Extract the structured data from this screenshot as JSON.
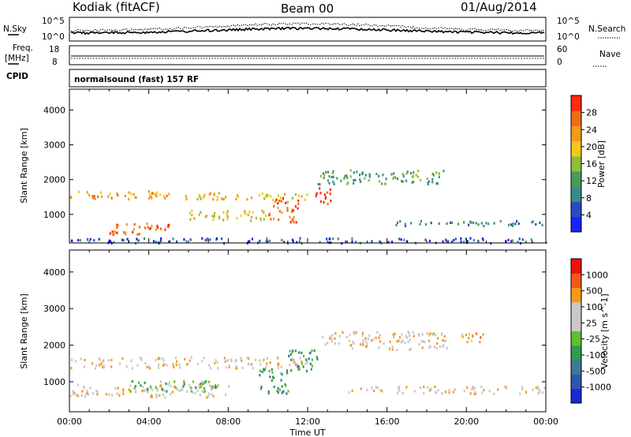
{
  "header": {
    "station": "Kodiak (fitACF)",
    "beam": "Beam 00",
    "date": "01/Aug/2014"
  },
  "strips": {
    "nsky_label": "N.Sky",
    "nsearch_label": "N.Search",
    "freq_label_1": "Freq.",
    "freq_label_2": "[MHz]",
    "nave_label": "Nave",
    "cpid_label": "CPID",
    "cpid_text": "normalsound (fast) 157 RF",
    "noise_ticks_left": [
      "10^5",
      "10^0"
    ],
    "noise_ticks_right": [
      "10^5",
      "10^0"
    ],
    "freq_ticks": [
      "18",
      "8"
    ],
    "nave_ticks": [
      "60",
      "0"
    ]
  },
  "colors": {
    "power": [
      "#1a22ff",
      "#2b4cc0",
      "#3a8a8a",
      "#4c9a5a",
      "#8dbf3a",
      "#f2c81c",
      "#f39a1a",
      "#f06a18",
      "#ff2a10"
    ],
    "velocity": [
      "#ee1111",
      "#f25a14",
      "#f59a1c",
      "#c8c8c8",
      "#c8c8c8",
      "#60c030",
      "#2f9a50",
      "#3c7a9a",
      "#2e56b0",
      "#1a2ad0"
    ]
  },
  "chart_data": [
    {
      "type": "heatmap",
      "title": "Power",
      "xlabel": "Time UT",
      "ylabel": "Slant Range [km]",
      "colorbar_label": "Power [dB]",
      "colorbar_ticks": [
        "4",
        "8",
        "12",
        "16",
        "20",
        "24",
        "28"
      ],
      "x_ticks": [
        "00:00",
        "04:00",
        "08:00",
        "12:00",
        "16:00",
        "20:00",
        "00:00"
      ],
      "y_ticks": [
        "1000",
        "2000",
        "3000",
        "4000"
      ],
      "xlim": [
        0,
        24
      ],
      "ylim": [
        180,
        4600
      ],
      "bands": [
        {
          "t": [
            0,
            5
          ],
          "range": [
            1450,
            1700
          ],
          "level": 6
        },
        {
          "t": [
            5,
            12
          ],
          "range": [
            1450,
            1650
          ],
          "level": 5
        },
        {
          "t": [
            2,
            5
          ],
          "range": [
            450,
            800
          ],
          "level": 7
        },
        {
          "t": [
            6,
            10
          ],
          "range": [
            850,
            1150
          ],
          "level": 5
        },
        {
          "t": [
            10,
            11.5
          ],
          "range": [
            800,
            1500
          ],
          "level": 7
        },
        {
          "t": [
            12.3,
            13.2
          ],
          "range": [
            1300,
            1800
          ],
          "level": 8
        },
        {
          "t": [
            12.5,
            19
          ],
          "range": [
            1900,
            2300
          ],
          "level": 3
        },
        {
          "t": [
            16,
            24
          ],
          "range": [
            700,
            850
          ],
          "level": 2
        },
        {
          "t": [
            0,
            24
          ],
          "range": [
            200,
            350
          ],
          "level": 1
        }
      ]
    },
    {
      "type": "heatmap",
      "title": "Velocity",
      "xlabel": "Time UT",
      "ylabel": "Slant Range [km]",
      "colorbar_label": "Velocity [m s^-1]",
      "colorbar_ticks": [
        "1000",
        "500",
        "100",
        "25",
        "-25",
        "-100",
        "-500",
        "-1000"
      ],
      "x_ticks": [
        "00:00",
        "04:00",
        "08:00",
        "12:00",
        "16:00",
        "20:00",
        "00:00"
      ],
      "y_ticks": [
        "1000",
        "2000",
        "3000",
        "4000"
      ],
      "xlim": [
        0,
        24
      ],
      "ylim": [
        180,
        4600
      ],
      "bands": [
        {
          "t": [
            0,
            12
          ],
          "range": [
            1400,
            1700
          ],
          "level": 3
        },
        {
          "t": [
            0,
            8
          ],
          "range": [
            600,
            950
          ],
          "level": 3
        },
        {
          "t": [
            3,
            8
          ],
          "range": [
            750,
            1050
          ],
          "level": 5
        },
        {
          "t": [
            9.5,
            11
          ],
          "range": [
            700,
            1400
          ],
          "level": 6
        },
        {
          "t": [
            11,
            12.5
          ],
          "range": [
            1300,
            1900
          ],
          "level": 6
        },
        {
          "t": [
            12.5,
            19
          ],
          "range": [
            1900,
            2400
          ],
          "level": 3
        },
        {
          "t": [
            14,
            24
          ],
          "range": [
            700,
            900
          ],
          "level": 3
        },
        {
          "t": [
            19.5,
            21
          ],
          "range": [
            2100,
            2350
          ],
          "level": 2
        }
      ]
    }
  ]
}
